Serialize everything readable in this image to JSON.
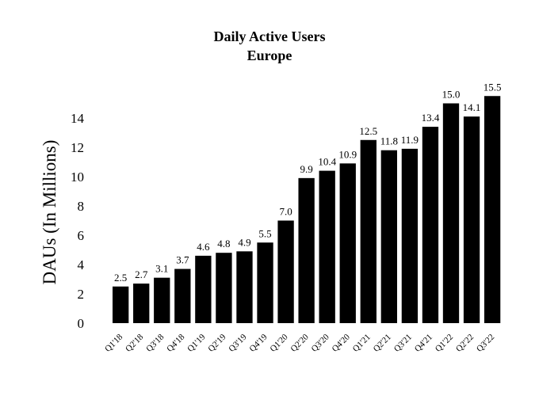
{
  "chart_data": {
    "type": "bar",
    "title": "Daily Active Users",
    "subtitle": "Europe",
    "xlabel": "",
    "ylabel": "DAUs (In Millions)",
    "ylim": [
      0,
      16
    ],
    "yticks": [
      0,
      2,
      4,
      6,
      8,
      10,
      12,
      14
    ],
    "grid": false,
    "legend": "none",
    "bar_color": "#000000",
    "categories": [
      "Q1'18",
      "Q2'18",
      "Q3'18",
      "Q4'18",
      "Q1'19",
      "Q2'19",
      "Q3'19",
      "Q4'19",
      "Q1'20",
      "Q2'20",
      "Q3'20",
      "Q4'20",
      "Q1'21",
      "Q2'21",
      "Q3'21",
      "Q4'21",
      "Q1'22",
      "Q2'22",
      "Q3'22"
    ],
    "values": [
      2.5,
      2.7,
      3.1,
      3.7,
      4.6,
      4.8,
      4.9,
      5.5,
      7.0,
      9.9,
      10.4,
      10.9,
      12.5,
      11.8,
      11.9,
      13.4,
      15.0,
      14.1,
      15.5
    ],
    "data_labels": [
      "2.5",
      "2.7",
      "3.1",
      "3.7",
      "4.6",
      "4.8",
      "4.9",
      "5.5",
      "7.0",
      "9.9",
      "10.4",
      "10.9",
      "12.5",
      "11.8",
      "11.9",
      "13.4",
      "15.0",
      "14.1",
      "15.5"
    ]
  }
}
